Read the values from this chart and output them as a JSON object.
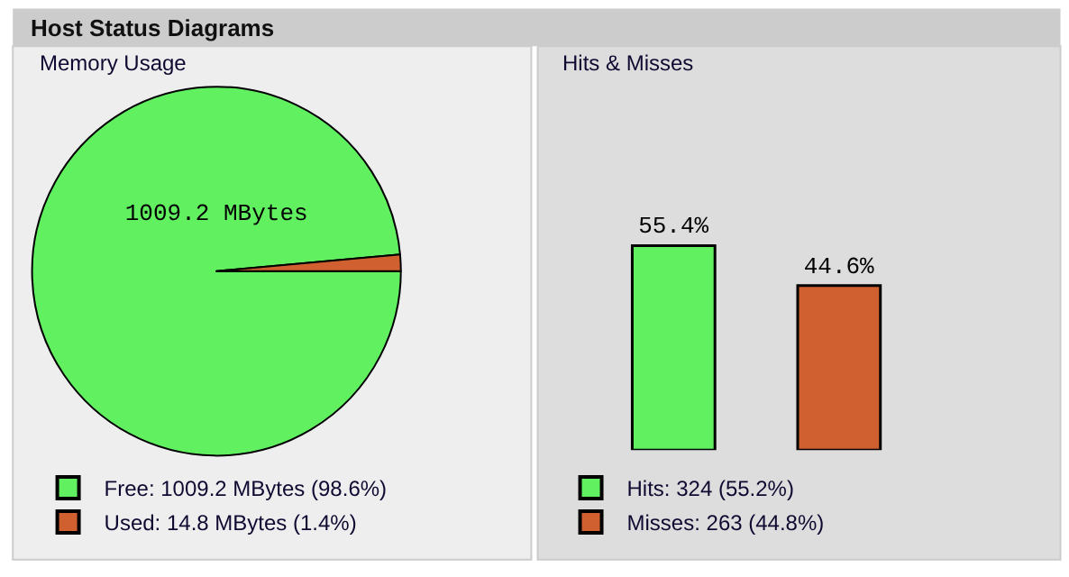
{
  "chart_data": [
    {
      "type": "pie",
      "title": "Host Status Diagrams",
      "subtitle": "Memory Usage",
      "categories": [
        "Free: 1009.2 MBytes (98.6%)",
        "Used: 14.8 MBytes (1.4%)"
      ],
      "values": [
        1009.2,
        14.8
      ],
      "colors": [
        "#60f060",
        "#d06030"
      ],
      "value_labels": [
        "1009.2 MBytes",
        null
      ],
      "legend": "bottom"
    },
    {
      "type": "bar",
      "title": "Hits & Misses",
      "categories": [
        null,
        null
      ],
      "tick_labels": false,
      "values": [
        55.4,
        44.6
      ],
      "colors": [
        "#60f060",
        "#d06030"
      ],
      "value_labels": [
        "55.4%",
        "44.6%"
      ],
      "annotations": [
        "Hits: 324 (55.2%)",
        "Misses: 263 (44.8%)"
      ]
    }
  ]
}
